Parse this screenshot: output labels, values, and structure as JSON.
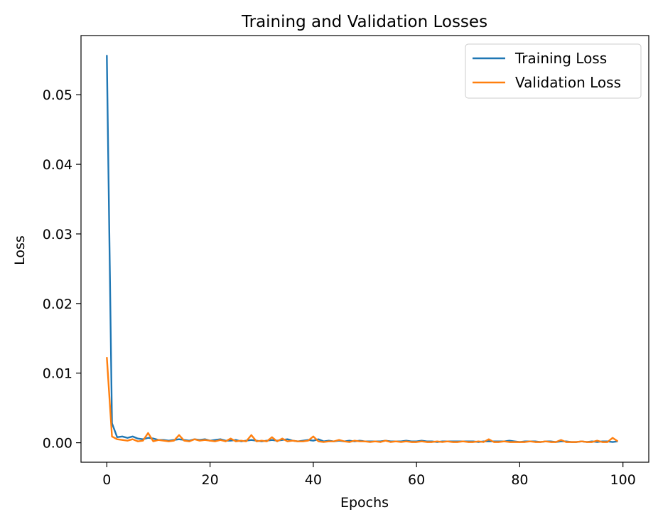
{
  "chart_data": {
    "type": "line",
    "title": "Training and Validation Losses",
    "xlabel": "Epochs",
    "ylabel": "Loss",
    "xlim": [
      -5,
      105
    ],
    "ylim": [
      -0.0028,
      0.0585
    ],
    "xticks": [
      0,
      20,
      40,
      60,
      80,
      100
    ],
    "xtick_labels": [
      "0",
      "20",
      "40",
      "60",
      "80",
      "100"
    ],
    "yticks": [
      0.0,
      0.01,
      0.02,
      0.03,
      0.04,
      0.05
    ],
    "ytick_labels": [
      "0.00",
      "0.01",
      "0.02",
      "0.03",
      "0.04",
      "0.05"
    ],
    "grid": false,
    "legend_position": "top-right",
    "x": [
      0,
      1,
      2,
      3,
      4,
      5,
      6,
      7,
      8,
      9,
      10,
      11,
      12,
      13,
      14,
      15,
      16,
      17,
      18,
      19,
      20,
      21,
      22,
      23,
      24,
      25,
      26,
      27,
      28,
      29,
      30,
      31,
      32,
      33,
      34,
      35,
      36,
      37,
      38,
      39,
      40,
      41,
      42,
      43,
      44,
      45,
      46,
      47,
      48,
      49,
      50,
      51,
      52,
      53,
      54,
      55,
      56,
      57,
      58,
      59,
      60,
      61,
      62,
      63,
      64,
      65,
      66,
      67,
      68,
      69,
      70,
      71,
      72,
      73,
      74,
      75,
      76,
      77,
      78,
      79,
      80,
      81,
      82,
      83,
      84,
      85,
      86,
      87,
      88,
      89,
      90,
      91,
      92,
      93,
      94,
      95,
      96,
      97,
      98,
      99
    ],
    "series": [
      {
        "name": "Training Loss",
        "color": "#1f77b4",
        "values": [
          0.0557,
          0.0028,
          0.0008,
          0.0009,
          0.0007,
          0.0009,
          0.0006,
          0.0005,
          0.0007,
          0.0006,
          0.0004,
          0.0004,
          0.0003,
          0.0004,
          0.0005,
          0.0004,
          0.0003,
          0.0005,
          0.0004,
          0.0005,
          0.0003,
          0.0004,
          0.0005,
          0.0003,
          0.0003,
          0.0004,
          0.0002,
          0.0003,
          0.0004,
          0.0003,
          0.0002,
          0.0003,
          0.0004,
          0.0003,
          0.0004,
          0.0005,
          0.0003,
          0.0002,
          0.0003,
          0.0004,
          0.0003,
          0.0005,
          0.0002,
          0.0003,
          0.0002,
          0.0003,
          0.0002,
          0.0003,
          0.0002,
          0.0003,
          0.0002,
          0.0002,
          0.0002,
          0.0002,
          0.0003,
          0.0002,
          0.0002,
          0.0002,
          0.0003,
          0.0002,
          0.0002,
          0.0003,
          0.0002,
          0.0002,
          0.0001,
          0.0002,
          0.0002,
          0.0002,
          0.0002,
          0.0002,
          0.0002,
          0.0002,
          0.0001,
          0.0002,
          0.0002,
          0.0002,
          0.0002,
          0.0002,
          0.0003,
          0.0002,
          0.0001,
          0.0002,
          0.0002,
          0.0002,
          0.0001,
          0.0002,
          0.0002,
          0.0001,
          0.0002,
          0.0002,
          0.0001,
          0.0001,
          0.0002,
          0.0001,
          0.0002,
          0.0001,
          0.0002,
          0.0002,
          0.0001,
          0.0002
        ]
      },
      {
        "name": "Validation Loss",
        "color": "#ff7f0e",
        "values": [
          0.0123,
          0.0009,
          0.0005,
          0.0004,
          0.0003,
          0.0005,
          0.0002,
          0.0003,
          0.0014,
          0.0002,
          0.0004,
          0.0003,
          0.0002,
          0.0003,
          0.0011,
          0.0003,
          0.0002,
          0.0005,
          0.0003,
          0.0004,
          0.0003,
          0.0002,
          0.0004,
          0.0002,
          0.0006,
          0.0002,
          0.0003,
          0.0002,
          0.0011,
          0.0002,
          0.0003,
          0.0002,
          0.0008,
          0.0002,
          0.0006,
          0.0002,
          0.0003,
          0.0002,
          0.0002,
          0.0003,
          0.0009,
          0.0002,
          0.0001,
          0.0002,
          0.0002,
          0.0004,
          0.0002,
          0.0001,
          0.0003,
          0.0002,
          0.0002,
          0.0001,
          0.0002,
          0.0001,
          0.0003,
          0.0001,
          0.0002,
          0.0001,
          0.0002,
          0.0001,
          0.0001,
          0.0002,
          0.0001,
          0.0001,
          0.0002,
          0.0001,
          0.0002,
          0.0001,
          0.0001,
          0.0002,
          0.0001,
          0.0001,
          0.0002,
          0.0001,
          0.0005,
          0.0001,
          0.0001,
          0.0002,
          0.0001,
          0.0001,
          0.0001,
          0.0001,
          0.0002,
          0.0001,
          0.0001,
          0.0002,
          0.0001,
          0.0001,
          0.0004,
          0.0001,
          0.0001,
          0.0001,
          0.0002,
          0.0001,
          0.0001,
          0.0003,
          0.0001,
          0.0001,
          0.0007,
          0.0002
        ]
      }
    ]
  }
}
